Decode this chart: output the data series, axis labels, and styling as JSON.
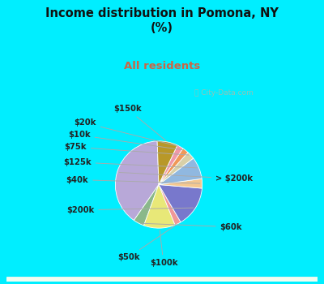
{
  "title": "Income distribution in Pomona, NY\n(%)",
  "subtitle": "All residents",
  "title_color": "#111111",
  "subtitle_color": "#cc6644",
  "bg_cyan": "#00eeff",
  "bg_panel": "#e8f5e8",
  "watermark": "City-Data.com",
  "labels": [
    "> $200k",
    "$60k",
    "$100k",
    "$50k",
    "$200k",
    "$40k",
    "$125k",
    "$75k",
    "$10k",
    "$20k",
    "$150k"
  ],
  "sizes": [
    34,
    3.5,
    10,
    2.0,
    13,
    3.0,
    7,
    2.5,
    2.0,
    2.0,
    6.5
  ],
  "colors": [
    "#b8a8d8",
    "#8ab88a",
    "#e8e878",
    "#f09898",
    "#7878cc",
    "#f5c890",
    "#90b8e0",
    "#d8d0a8",
    "#f09858",
    "#f098a8",
    "#b89828"
  ],
  "startangle": 92,
  "label_fontsize": 7.2
}
